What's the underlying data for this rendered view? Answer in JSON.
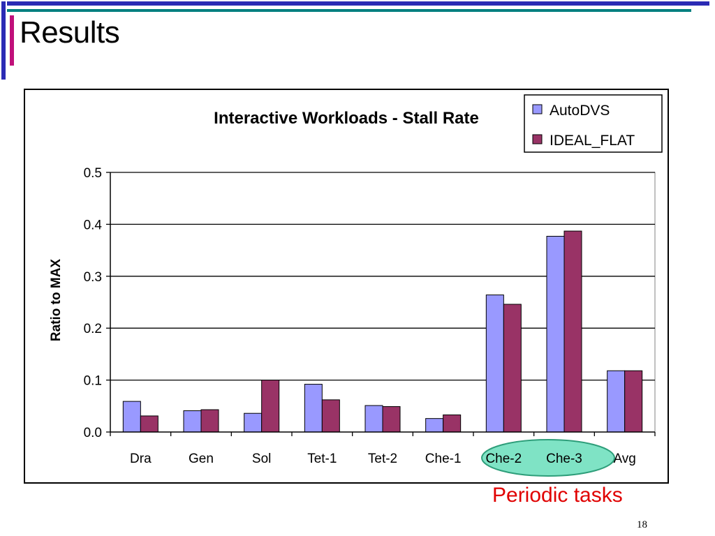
{
  "slide": {
    "title": "Results",
    "annotation": "Periodic tasks",
    "page_number": "18"
  },
  "colors": {
    "accent_blue": "#2b2bb5",
    "accent_magenta": "#c0107a",
    "accent_teal": "#007f7f",
    "highlight_fill": "#7fe3c5",
    "annotation_red": "#e00000"
  },
  "chart_data": {
    "type": "bar",
    "title": "Interactive Workloads - Stall Rate",
    "xlabel": "",
    "ylabel": "Ratio to MAX",
    "categories": [
      "Dra",
      "Gen",
      "Sol",
      "Tet-1",
      "Tet-2",
      "Che-1",
      "Che-2",
      "Che-3",
      "Avg"
    ],
    "series": [
      {
        "name": "AutoDVS",
        "color": "#9999ff",
        "values": [
          0.059,
          0.041,
          0.036,
          0.092,
          0.051,
          0.026,
          0.264,
          0.377,
          0.118
        ]
      },
      {
        "name": "IDEAL_FLAT",
        "color": "#993366",
        "values": [
          0.031,
          0.043,
          0.1,
          0.062,
          0.049,
          0.033,
          0.246,
          0.387,
          0.118
        ]
      }
    ],
    "ylim": [
      0,
      0.5
    ],
    "yticks": [
      "0.0",
      "0.1",
      "0.2",
      "0.3",
      "0.4",
      "0.5"
    ],
    "grid": true,
    "legend_position": "top-right",
    "highlighted_categories": [
      "Che-2",
      "Che-3"
    ]
  }
}
